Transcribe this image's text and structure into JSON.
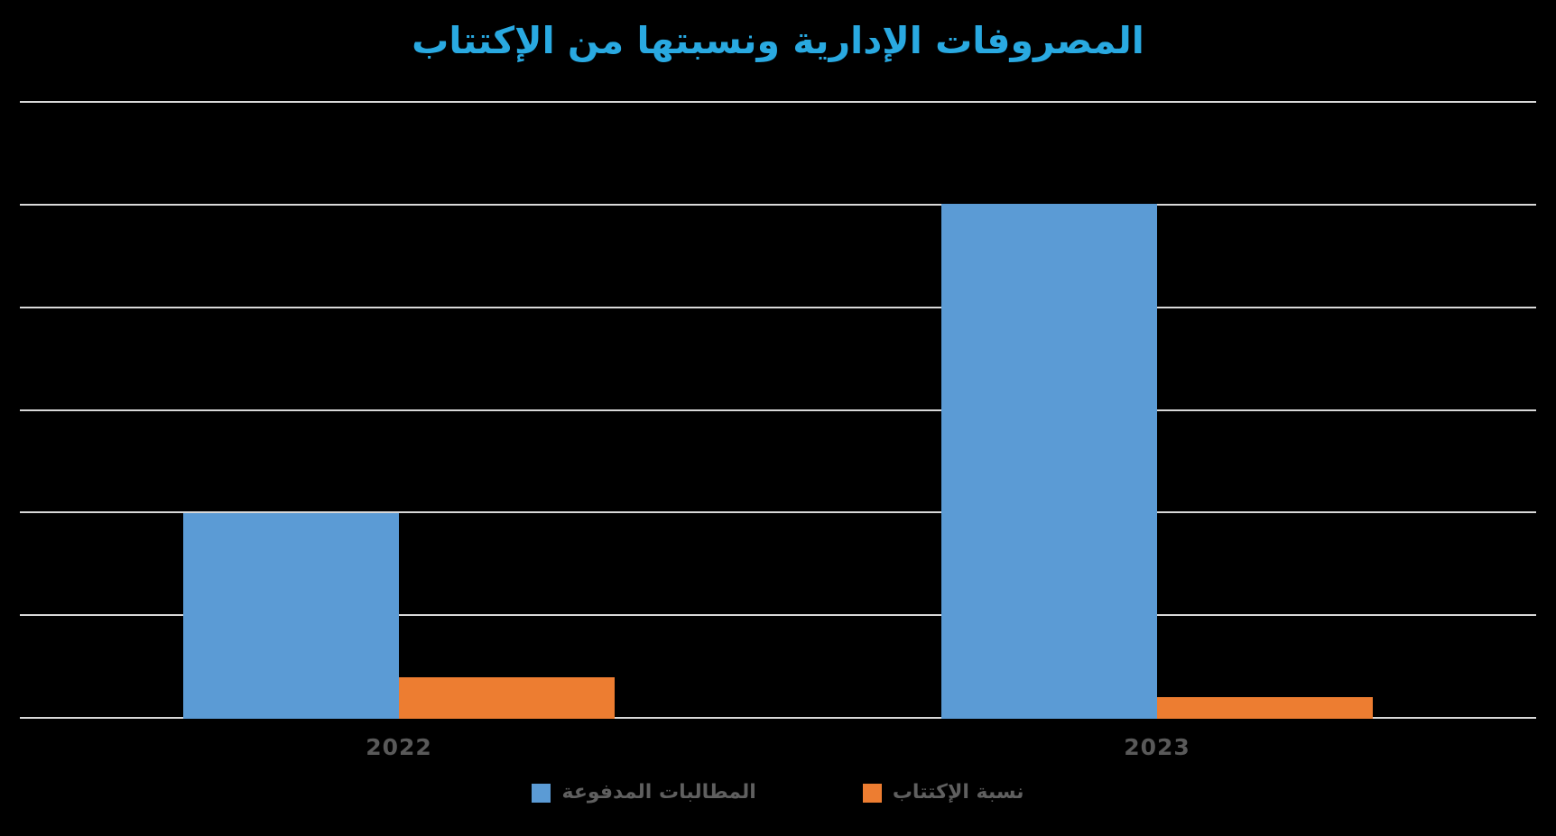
{
  "palette": {
    "background": "#000000",
    "title": "#29A9E1",
    "gridline": "#D9D9D9",
    "axis_label": "#595959",
    "legend_label": "#5F5F5F",
    "series_blue": "#5B9BD5",
    "series_orange": "#ED7D31"
  },
  "chart_data": {
    "type": "bar",
    "title": "المصروفات الإدارية ونسبتها من الإكتتاب",
    "categories": [
      "2022",
      "2023"
    ],
    "series": [
      {
        "name": "المطالبات المدفوعة",
        "slug": "paid-claims",
        "color": "#5B9BD5",
        "values": [
          2.0,
          5.0
        ]
      },
      {
        "name": "نسبة الإكتتاب",
        "slug": "subscription-ratio",
        "color": "#ED7D31",
        "values": [
          0.4,
          0.21
        ]
      }
    ],
    "ylim": [
      0,
      6
    ],
    "gridline_count": 7,
    "grid": true,
    "y_tick_labels_visible": false,
    "values_unit": "gridline steps (y-axis has no visible tick labels; values estimated from gridlines)",
    "legend_position": "bottom",
    "xlabel": "",
    "ylabel": ""
  }
}
